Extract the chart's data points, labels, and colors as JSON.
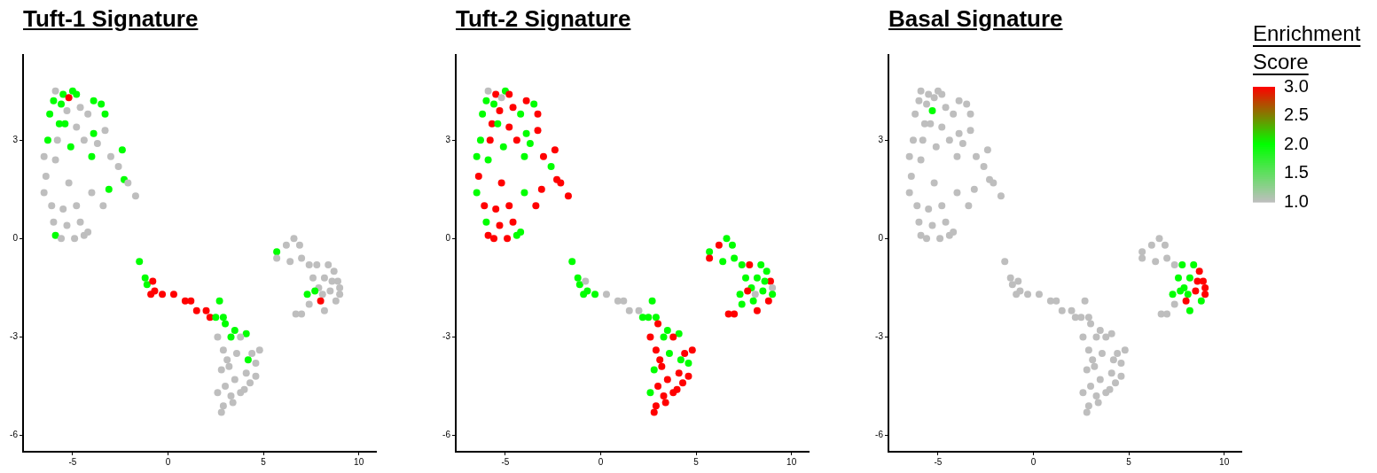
{
  "chart_data": [
    {
      "type": "scatter",
      "title": "Tuft-1 Signature",
      "marker": "circle",
      "grid": false,
      "xlim": [
        -7.6,
        10.9
      ],
      "ylim": [
        -6.5,
        5.6
      ],
      "xticks": [
        -5,
        0,
        5,
        10
      ],
      "yticks": [
        -6,
        -3,
        0,
        3
      ],
      "x": [
        -5.9,
        -5.5,
        -5,
        -4.8,
        -5.2,
        -6,
        -5.6,
        -4.6,
        -3.9,
        -3.5,
        -6.2,
        -5.3,
        -4.2,
        -3.3,
        -5.7,
        -5.4,
        -4.8,
        -3.9,
        -3.3,
        -6.3,
        -5.8,
        -5.1,
        -4.4,
        -3.7,
        -2.4,
        -6.5,
        -5.9,
        -4,
        -3,
        -2.6,
        -6.4,
        -5.2,
        -4,
        -3.1,
        -2.3,
        -2.1,
        -1.7,
        -6.5,
        -6.1,
        -5.5,
        -4.8,
        -3.4,
        -6,
        -5.3,
        -4.6,
        -5.9,
        -5.6,
        -4.9,
        -4.4,
        -4.2,
        -1.5,
        -1.2,
        -1.1,
        -0.8,
        -0.7,
        -0.9,
        -0.3,
        0.3,
        0.9,
        1.2,
        1.5,
        2,
        2.2,
        2.5,
        2.7,
        2.9,
        3,
        3.5,
        4.1,
        3.3,
        3.8,
        4.4,
        4.8,
        2.9,
        3.6,
        4.2,
        4.6,
        3.2,
        2.8,
        4.1,
        4.6,
        3.5,
        3,
        4.3,
        3.3,
        3.8,
        2.6,
        2.9,
        3.4,
        2.8,
        4,
        3.1,
        2.6,
        5.7,
        6.2,
        6.6,
        6.9,
        7,
        5.7,
        6.4,
        7.4,
        7.8,
        8.4,
        8.7,
        7.6,
        8.2,
        8.9,
        9,
        7.9,
        8.5,
        7.3,
        8.1,
        9,
        7.7,
        8.8,
        8,
        7.4,
        8.2,
        7,
        6.7,
        8.6
      ],
      "values": [
        4.5,
        4.4,
        4.5,
        4.4,
        4.3,
        4.2,
        4.1,
        4,
        4.2,
        4.1,
        3.8,
        3.9,
        3.8,
        3.8,
        3.5,
        3.5,
        3.4,
        3.2,
        3.3,
        3,
        3,
        2.8,
        3,
        2.9,
        2.7,
        2.5,
        2.4,
        2.5,
        2.5,
        2.2,
        1.9,
        1.7,
        1.4,
        1.5,
        1.8,
        1.7,
        1.3,
        1.4,
        1,
        0.9,
        1,
        1,
        0.5,
        0.4,
        0.5,
        0.1,
        0,
        0,
        0.1,
        0.2,
        -0.7,
        -1.2,
        -1.4,
        -1.3,
        -1.6,
        -1.7,
        -1.7,
        -1.7,
        -1.9,
        -1.9,
        -2.2,
        -2.2,
        -2.4,
        -2.4,
        -1.9,
        -2.4,
        -2.6,
        -2.8,
        -2.9,
        -3,
        -3,
        -3.5,
        -3.4,
        -3.4,
        -3.5,
        -3.7,
        -3.8,
        -3.9,
        -4,
        -4.1,
        -4.2,
        -4.3,
        -4.5,
        -4.4,
        -4.8,
        -4.7,
        -4.7,
        -5.1,
        -5,
        -5.3,
        -4.6,
        -3.7,
        -3,
        -0.4,
        -0.2,
        0,
        -0.2,
        -0.6,
        -0.6,
        -0.7,
        -0.8,
        -0.8,
        -0.8,
        -1,
        -1.2,
        -1.2,
        -1.3,
        -1.5,
        -1.5,
        -1.6,
        -1.7,
        -1.7,
        -1.7,
        -1.6,
        -1.9,
        -1.9,
        -2,
        -2.2,
        -2.3,
        -2.3,
        -1.3
      ],
      "colors": [
        "#bebebe",
        "#00ff00",
        "#00ff00",
        "#00ff00",
        "#ff0000",
        "#00ff00",
        "#00ff00",
        "#bebebe",
        "#00ff00",
        "#00ff00",
        "#00ff00",
        "#bebebe",
        "#bebebe",
        "#00ff00",
        "#00ff00",
        "#00ff00",
        "#bebebe",
        "#00ff00",
        "#bebebe",
        "#00ff00",
        "#bebebe",
        "#00ff00",
        "#bebebe",
        "#bebebe",
        "#00ff00",
        "#bebebe",
        "#bebebe",
        "#00ff00",
        "#bebebe",
        "#bebebe",
        "#bebebe",
        "#bebebe",
        "#bebebe",
        "#00ff00",
        "#00ff00",
        "#bebebe",
        "#bebebe",
        "#bebebe",
        "#bebebe",
        "#bebebe",
        "#bebebe",
        "#bebebe",
        "#bebebe",
        "#bebebe",
        "#bebebe",
        "#00ff00",
        "#bebebe",
        "#bebebe",
        "#bebebe",
        "#bebebe",
        "#00ff00",
        "#00ff00",
        "#00ff00",
        "#ff0000",
        "#ff0000",
        "#ff0000",
        "#ff0000",
        "#ff0000",
        "#ff0000",
        "#ff0000",
        "#ff0000",
        "#ff0000",
        "#ff0000",
        "#00ff00",
        "#00ff00",
        "#00ff00",
        "#00ff00",
        "#00ff00",
        "#00ff00",
        "#00ff00",
        "#bebebe",
        "#bebebe",
        "#bebebe",
        "#bebebe",
        "#bebebe",
        "#00ff00",
        "#bebebe",
        "#bebebe",
        "#bebebe",
        "#bebebe",
        "#bebebe",
        "#bebebe",
        "#bebebe",
        "#bebebe",
        "#bebebe",
        "#bebebe",
        "#bebebe",
        "#bebebe",
        "#bebebe",
        "#bebebe",
        "#bebebe",
        "#bebebe",
        "#bebebe",
        "#00ff00",
        "#bebebe",
        "#bebebe",
        "#bebebe",
        "#bebebe",
        "#bebebe",
        "#bebebe",
        "#bebebe",
        "#bebebe",
        "#bebebe",
        "#bebebe",
        "#bebebe",
        "#bebebe",
        "#bebebe",
        "#bebebe",
        "#bebebe",
        "#bebebe",
        "#00ff00",
        "#bebebe",
        "#bebebe",
        "#00ff00",
        "#bebebe",
        "#ff0000",
        "#bebebe",
        "#bebebe",
        "#bebebe",
        "#bebebe",
        "#bebebe"
      ]
    },
    {
      "type": "scatter",
      "title": "Tuft-2 Signature",
      "marker": "circle",
      "grid": false,
      "xlim": [
        -7.6,
        10.9
      ],
      "ylim": [
        -6.5,
        5.6
      ],
      "xticks": [
        -5,
        0,
        5,
        10
      ],
      "yticks": [
        -6,
        -3,
        0,
        3
      ],
      "x": [
        -5.9,
        -5.5,
        -5,
        -4.8,
        -5.2,
        -6,
        -5.6,
        -4.6,
        -3.9,
        -3.5,
        -6.2,
        -5.3,
        -4.2,
        -3.3,
        -5.7,
        -5.4,
        -4.8,
        -3.9,
        -3.3,
        -6.3,
        -5.8,
        -5.1,
        -4.4,
        -3.7,
        -2.4,
        -6.5,
        -5.9,
        -4,
        -3,
        -2.6,
        -6.4,
        -5.2,
        -4,
        -3.1,
        -2.3,
        -2.1,
        -1.7,
        -6.5,
        -6.1,
        -5.5,
        -4.8,
        -3.4,
        -6,
        -5.3,
        -4.6,
        -5.9,
        -5.6,
        -4.9,
        -4.4,
        -4.2,
        -1.5,
        -1.2,
        -1.1,
        -0.8,
        -0.7,
        -0.9,
        -0.3,
        0.3,
        0.9,
        1.2,
        1.5,
        2,
        2.2,
        2.5,
        2.7,
        2.9,
        3,
        3.5,
        4.1,
        3.3,
        3.8,
        4.4,
        4.8,
        2.9,
        3.6,
        4.2,
        4.6,
        3.2,
        2.8,
        4.1,
        4.6,
        3.5,
        3,
        4.3,
        3.3,
        3.8,
        2.6,
        2.9,
        3.4,
        2.8,
        4,
        3.1,
        2.6,
        5.7,
        6.2,
        6.6,
        6.9,
        7,
        5.7,
        6.4,
        7.4,
        7.8,
        8.4,
        8.7,
        7.6,
        8.2,
        8.9,
        9,
        7.9,
        8.5,
        7.3,
        8.1,
        9,
        7.7,
        8.8,
        8,
        7.4,
        8.2,
        7,
        6.7,
        8.6
      ],
      "values": [
        4.5,
        4.4,
        4.5,
        4.4,
        4.3,
        4.2,
        4.1,
        4,
        4.2,
        4.1,
        3.8,
        3.9,
        3.8,
        3.8,
        3.5,
        3.5,
        3.4,
        3.2,
        3.3,
        3,
        3,
        2.8,
        3,
        2.9,
        2.7,
        2.5,
        2.4,
        2.5,
        2.5,
        2.2,
        1.9,
        1.7,
        1.4,
        1.5,
        1.8,
        1.7,
        1.3,
        1.4,
        1,
        0.9,
        1,
        1,
        0.5,
        0.4,
        0.5,
        0.1,
        0,
        0,
        0.1,
        0.2,
        -0.7,
        -1.2,
        -1.4,
        -1.3,
        -1.6,
        -1.7,
        -1.7,
        -1.7,
        -1.9,
        -1.9,
        -2.2,
        -2.2,
        -2.4,
        -2.4,
        -1.9,
        -2.4,
        -2.6,
        -2.8,
        -2.9,
        -3,
        -3,
        -3.5,
        -3.4,
        -3.4,
        -3.5,
        -3.7,
        -3.8,
        -3.9,
        -4,
        -4.1,
        -4.2,
        -4.3,
        -4.5,
        -4.4,
        -4.8,
        -4.7,
        -4.7,
        -5.1,
        -5,
        -5.3,
        -4.6,
        -3.7,
        -3,
        -0.4,
        -0.2,
        0,
        -0.2,
        -0.6,
        -0.6,
        -0.7,
        -0.8,
        -0.8,
        -0.8,
        -1,
        -1.2,
        -1.2,
        -1.3,
        -1.5,
        -1.5,
        -1.6,
        -1.7,
        -1.7,
        -1.7,
        -1.6,
        -1.9,
        -1.9,
        -2,
        -2.2,
        -2.3,
        -2.3,
        -1.3
      ],
      "colors": [
        "#bebebe",
        "#ff0000",
        "#00ff00",
        "#ff0000",
        "#bebebe",
        "#00ff00",
        "#00ff00",
        "#ff0000",
        "#ff0000",
        "#00ff00",
        "#00ff00",
        "#ff0000",
        "#00ff00",
        "#ff0000",
        "#ff0000",
        "#00ff00",
        "#ff0000",
        "#00ff00",
        "#ff0000",
        "#00ff00",
        "#ff0000",
        "#00ff00",
        "#ff0000",
        "#00ff00",
        "#ff0000",
        "#00ff00",
        "#00ff00",
        "#00ff00",
        "#ff0000",
        "#00ff00",
        "#ff0000",
        "#ff0000",
        "#00ff00",
        "#ff0000",
        "#ff0000",
        "#ff0000",
        "#ff0000",
        "#00ff00",
        "#ff0000",
        "#ff0000",
        "#ff0000",
        "#ff0000",
        "#00ff00",
        "#ff0000",
        "#ff0000",
        "#ff0000",
        "#ff0000",
        "#ff0000",
        "#00ff00",
        "#00ff00",
        "#00ff00",
        "#00ff00",
        "#00ff00",
        "#bebebe",
        "#00ff00",
        "#00ff00",
        "#00ff00",
        "#bebebe",
        "#bebebe",
        "#bebebe",
        "#bebebe",
        "#bebebe",
        "#00ff00",
        "#00ff00",
        "#00ff00",
        "#00ff00",
        "#ff0000",
        "#00ff00",
        "#00ff00",
        "#00ff00",
        "#ff0000",
        "#ff0000",
        "#ff0000",
        "#ff0000",
        "#00ff00",
        "#00ff00",
        "#00ff00",
        "#ff0000",
        "#00ff00",
        "#ff0000",
        "#ff0000",
        "#ff0000",
        "#ff0000",
        "#ff0000",
        "#ff0000",
        "#ff0000",
        "#00ff00",
        "#ff0000",
        "#ff0000",
        "#ff0000",
        "#ff0000",
        "#ff0000",
        "#ff0000",
        "#00ff00",
        "#ff0000",
        "#00ff00",
        "#00ff00",
        "#00ff00",
        "#ff0000",
        "#00ff00",
        "#00ff00",
        "#ff0000",
        "#00ff00",
        "#00ff00",
        "#00ff00",
        "#00ff00",
        "#ff0000",
        "#bebebe",
        "#00ff00",
        "#00ff00",
        "#00ff00",
        "#bebebe",
        "#00ff00",
        "#ff0000",
        "#ff0000",
        "#00ff00",
        "#00ff00",
        "#ff0000",
        "#ff0000",
        "#ff0000",
        "#00ff00"
      ]
    },
    {
      "type": "scatter",
      "title": "Basal Signature",
      "marker": "circle",
      "grid": false,
      "xlim": [
        -7.6,
        10.9
      ],
      "ylim": [
        -6.5,
        5.6
      ],
      "xticks": [
        -5,
        0,
        5,
        10
      ],
      "yticks": [
        -6,
        -3,
        0,
        3
      ],
      "clim": [
        1,
        3
      ],
      "cticks": [
        {
          "value": 1,
          "label": "1.0"
        },
        {
          "value": 1.5,
          "label": "1.5"
        },
        {
          "value": 2,
          "label": "2.0"
        },
        {
          "value": 2.5,
          "label": "2.5"
        },
        {
          "value": 3,
          "label": "3.0"
        }
      ],
      "clabel": "Enrichment Score",
      "x": [
        -5.9,
        -5.5,
        -5,
        -4.8,
        -5.2,
        -6,
        -5.6,
        -4.6,
        -3.9,
        -3.5,
        -6.2,
        -5.3,
        -4.2,
        -3.3,
        -5.7,
        -5.4,
        -4.8,
        -3.9,
        -3.3,
        -6.3,
        -5.8,
        -5.1,
        -4.4,
        -3.7,
        -2.4,
        -6.5,
        -5.9,
        -4,
        -3,
        -2.6,
        -6.4,
        -5.2,
        -4,
        -3.1,
        -2.3,
        -2.1,
        -1.7,
        -6.5,
        -6.1,
        -5.5,
        -4.8,
        -3.4,
        -6,
        -5.3,
        -4.6,
        -5.9,
        -5.6,
        -4.9,
        -4.4,
        -4.2,
        -1.5,
        -1.2,
        -1.1,
        -0.8,
        -0.7,
        -0.9,
        -0.3,
        0.3,
        0.9,
        1.2,
        1.5,
        2,
        2.2,
        2.5,
        2.7,
        2.9,
        3,
        3.5,
        4.1,
        3.3,
        3.8,
        4.4,
        4.8,
        2.9,
        3.6,
        4.2,
        4.6,
        3.2,
        2.8,
        4.1,
        4.6,
        3.5,
        3,
        4.3,
        3.3,
        3.8,
        2.6,
        2.9,
        3.4,
        2.8,
        4,
        3.1,
        2.6,
        5.7,
        6.2,
        6.6,
        6.9,
        7,
        5.7,
        6.4,
        7.4,
        7.8,
        8.4,
        8.7,
        7.6,
        8.2,
        8.9,
        9,
        7.9,
        8.5,
        7.3,
        8.1,
        9,
        7.7,
        8.8,
        8,
        7.4,
        8.2,
        7,
        6.7,
        8.6
      ],
      "values": [
        4.5,
        4.4,
        4.5,
        4.4,
        4.3,
        4.2,
        4.1,
        4,
        4.2,
        4.1,
        3.8,
        3.9,
        3.8,
        3.8,
        3.5,
        3.5,
        3.4,
        3.2,
        3.3,
        3,
        3,
        2.8,
        3,
        2.9,
        2.7,
        2.5,
        2.4,
        2.5,
        2.5,
        2.2,
        1.9,
        1.7,
        1.4,
        1.5,
        1.8,
        1.7,
        1.3,
        1.4,
        1,
        0.9,
        1,
        1,
        0.5,
        0.4,
        0.5,
        0.1,
        0,
        0,
        0.1,
        0.2,
        -0.7,
        -1.2,
        -1.4,
        -1.3,
        -1.6,
        -1.7,
        -1.7,
        -1.7,
        -1.9,
        -1.9,
        -2.2,
        -2.2,
        -2.4,
        -2.4,
        -1.9,
        -2.4,
        -2.6,
        -2.8,
        -2.9,
        -3,
        -3,
        -3.5,
        -3.4,
        -3.4,
        -3.5,
        -3.7,
        -3.8,
        -3.9,
        -4,
        -4.1,
        -4.2,
        -4.3,
        -4.5,
        -4.4,
        -4.8,
        -4.7,
        -4.7,
        -5.1,
        -5,
        -5.3,
        -4.6,
        -3.7,
        -3,
        -0.4,
        -0.2,
        0,
        -0.2,
        -0.6,
        -0.6,
        -0.7,
        -0.8,
        -0.8,
        -0.8,
        -1,
        -1.2,
        -1.2,
        -1.3,
        -1.5,
        -1.5,
        -1.6,
        -1.7,
        -1.7,
        -1.7,
        -1.6,
        -1.9,
        -1.9,
        -2,
        -2.2,
        -2.3,
        -2.3,
        -1.3
      ],
      "cvalues": [
        1,
        1,
        1,
        1,
        1,
        1,
        1,
        1,
        1,
        1,
        1,
        2,
        1,
        1,
        1,
        1,
        1,
        1,
        1,
        1,
        1,
        1,
        1,
        1,
        1,
        1,
        1,
        1,
        1,
        1,
        1,
        1,
        1,
        1,
        1,
        1,
        1,
        1,
        1,
        1,
        1,
        1,
        1,
        1,
        1,
        1,
        1,
        1,
        1,
        1,
        1,
        1,
        1,
        1,
        1,
        1,
        1,
        1,
        1,
        1,
        1,
        1,
        1,
        1,
        1,
        1,
        1,
        1,
        1,
        1,
        1,
        1,
        1,
        1,
        1,
        1,
        1,
        1,
        1,
        1,
        1,
        1,
        1,
        1,
        1,
        1,
        1,
        1,
        1,
        1,
        1,
        1,
        1,
        1,
        1,
        1,
        1,
        1,
        1,
        1,
        1,
        2,
        2,
        3,
        2,
        2,
        3,
        3,
        2,
        3,
        2,
        2,
        3,
        2,
        2,
        3,
        1,
        2,
        1,
        1,
        3
      ]
    }
  ]
}
